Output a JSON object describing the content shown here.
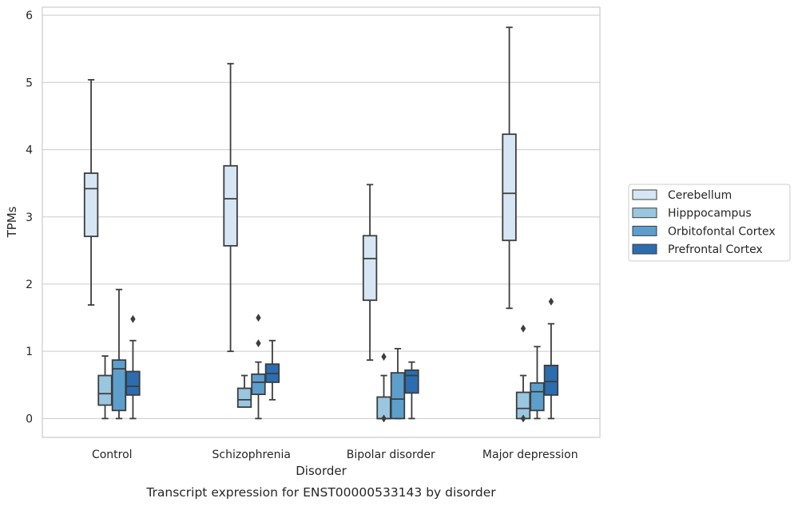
{
  "chart_data": {
    "type": "box",
    "caption": "Transcript expression for ENST00000533143 by disorder",
    "xlabel": "Disorder",
    "ylabel": "TPMs",
    "ylim": [
      -0.28,
      6.12
    ],
    "yticks": [
      0,
      1,
      2,
      3,
      4,
      5,
      6
    ],
    "grid": "horizontal",
    "legend_position": "right",
    "categories": [
      "Control",
      "Schizophrenia",
      "Bipolar disorder",
      "Major depression"
    ],
    "series": [
      {
        "name": "Cerebellum",
        "color": "#d6e6f4",
        "boxes": [
          {
            "whisker_low": 1.69,
            "q1": 2.71,
            "median": 3.42,
            "q3": 3.65,
            "whisker_high": 5.04,
            "outliers": []
          },
          {
            "whisker_low": 1.0,
            "q1": 2.57,
            "median": 3.27,
            "q3": 3.76,
            "whisker_high": 5.28,
            "outliers": []
          },
          {
            "whisker_low": 0.87,
            "q1": 1.76,
            "median": 2.38,
            "q3": 2.72,
            "whisker_high": 3.48,
            "outliers": []
          },
          {
            "whisker_low": 1.64,
            "q1": 2.65,
            "median": 3.35,
            "q3": 4.23,
            "whisker_high": 5.82,
            "outliers": []
          }
        ]
      },
      {
        "name": "Hipppocampus",
        "color": "#9ac7e0",
        "boxes": [
          {
            "whisker_low": 0.0,
            "q1": 0.2,
            "median": 0.37,
            "q3": 0.64,
            "whisker_high": 0.93,
            "outliers": []
          },
          {
            "whisker_low": 0.17,
            "q1": 0.17,
            "median": 0.28,
            "q3": 0.45,
            "whisker_high": 0.64,
            "outliers": []
          },
          {
            "whisker_low": 0.0,
            "q1": 0.0,
            "median": 0.0,
            "q3": 0.32,
            "whisker_high": 0.64,
            "outliers": [
              0.92,
              0.0
            ]
          },
          {
            "whisker_low": 0.0,
            "q1": 0.0,
            "median": 0.15,
            "q3": 0.39,
            "whisker_high": 0.64,
            "outliers": [
              1.34,
              0.0
            ]
          }
        ]
      },
      {
        "name": "Orbitofontal Cortex",
        "color": "#5c9fcd",
        "boxes": [
          {
            "whisker_low": 0.0,
            "q1": 0.12,
            "median": 0.74,
            "q3": 0.87,
            "whisker_high": 1.92,
            "outliers": []
          },
          {
            "whisker_low": 0.0,
            "q1": 0.36,
            "median": 0.54,
            "q3": 0.66,
            "whisker_high": 0.84,
            "outliers": [
              1.5,
              1.12
            ]
          },
          {
            "whisker_low": 0.0,
            "q1": 0.0,
            "median": 0.29,
            "q3": 0.68,
            "whisker_high": 1.04,
            "outliers": []
          },
          {
            "whisker_low": 0.0,
            "q1": 0.12,
            "median": 0.4,
            "q3": 0.53,
            "whisker_high": 1.07,
            "outliers": []
          }
        ]
      },
      {
        "name": "Prefrontal Cortex",
        "color": "#2b6daf",
        "boxes": [
          {
            "whisker_low": 0.0,
            "q1": 0.35,
            "median": 0.48,
            "q3": 0.7,
            "whisker_high": 1.16,
            "outliers": [
              1.48
            ]
          },
          {
            "whisker_low": 0.28,
            "q1": 0.54,
            "median": 0.67,
            "q3": 0.81,
            "whisker_high": 1.16,
            "outliers": []
          },
          {
            "whisker_low": 0.0,
            "q1": 0.38,
            "median": 0.64,
            "q3": 0.72,
            "whisker_high": 0.84,
            "outliers": []
          },
          {
            "whisker_low": 0.0,
            "q1": 0.35,
            "median": 0.55,
            "q3": 0.79,
            "whisker_high": 1.41,
            "outliers": [
              1.74
            ]
          }
        ]
      }
    ]
  }
}
